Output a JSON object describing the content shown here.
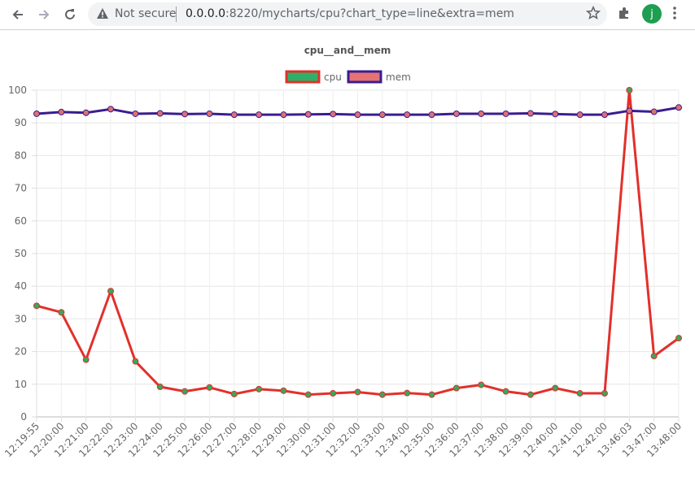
{
  "browser": {
    "security_label": "Not secure",
    "url_host": "0.0.0.0",
    "url_rest": ":8220/mycharts/cpu?chart_type=line&extra=mem",
    "avatar_letter": "j",
    "icons": [
      "back-arrow-icon",
      "forward-arrow-icon",
      "reload-icon",
      "warning-icon",
      "star-icon",
      "puzzle-icon",
      "kebab-menu-icon"
    ]
  },
  "chart_data": {
    "type": "line",
    "title": "cpu__and__mem",
    "categories": [
      "12:19:55",
      "12:20:00",
      "12:21:00",
      "12:22:00",
      "12:23:00",
      "12:24:00",
      "12:25:00",
      "12:26:00",
      "12:27:00",
      "12:28:00",
      "12:29:00",
      "12:30:00",
      "12:31:00",
      "12:32:00",
      "12:33:00",
      "12:34:00",
      "12:35:00",
      "12:36:00",
      "12:37:00",
      "12:38:00",
      "12:39:00",
      "12:40:00",
      "12:41:00",
      "12:42:00",
      "13:46:03",
      "13:47:00",
      "13:48:00"
    ],
    "series": [
      {
        "name": "cpu",
        "color": "#e2302b",
        "point_color": "#3aa65c",
        "values": [
          34,
          32,
          17.5,
          38.5,
          17,
          9.2,
          7.8,
          9,
          7,
          8.5,
          8,
          6.8,
          7.2,
          7.6,
          6.8,
          7.3,
          6.8,
          8.8,
          9.8,
          7.8,
          6.8,
          8.8,
          7.2,
          7.2,
          100,
          18.6,
          24.1
        ]
      },
      {
        "name": "mem",
        "color": "#3a1d8f",
        "point_color": "#e07070",
        "values": [
          92.8,
          93.3,
          93.1,
          94.2,
          92.8,
          92.9,
          92.7,
          92.8,
          92.5,
          92.5,
          92.5,
          92.6,
          92.7,
          92.5,
          92.5,
          92.5,
          92.5,
          92.8,
          92.8,
          92.8,
          92.9,
          92.7,
          92.5,
          92.5,
          93.7,
          93.4,
          94.7
        ]
      }
    ],
    "ylim": [
      0,
      100
    ],
    "yticks": [
      0,
      10,
      20,
      30,
      40,
      50,
      60,
      70,
      80,
      90,
      100
    ],
    "grid": true,
    "legend_position": "top"
  }
}
